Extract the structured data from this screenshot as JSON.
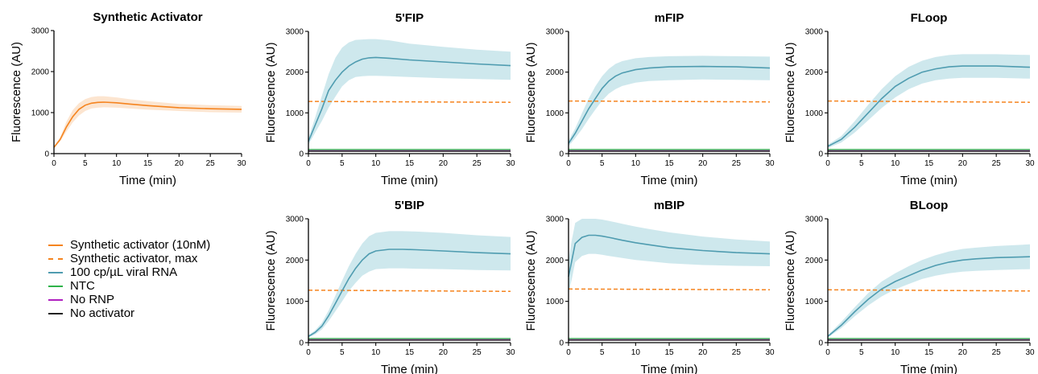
{
  "chart_data": [
    {
      "id": "synthetic-activator",
      "type": "line",
      "title": "Synthetic Activator",
      "xlabel": "Time (min)",
      "ylabel": "Fluorescence (AU)",
      "xlim": [
        0,
        30
      ],
      "ylim": [
        0,
        3000
      ],
      "xticks": [
        "0",
        "5",
        "10",
        "15",
        "20",
        "25",
        "30"
      ],
      "yticks": [
        "0",
        "1000",
        "2000",
        "3000"
      ],
      "series": [
        {
          "name": "Synthetic activator (10nM)",
          "color": "#f5841f",
          "band_color": "#fbe1c8",
          "x": [
            0,
            1,
            2,
            3,
            4,
            5,
            6,
            7,
            8,
            10,
            12,
            15,
            20,
            25,
            30
          ],
          "y": [
            150,
            350,
            650,
            900,
            1080,
            1180,
            1230,
            1250,
            1255,
            1240,
            1210,
            1170,
            1120,
            1095,
            1080
          ],
          "lower": [
            140,
            300,
            540,
            760,
            930,
            1040,
            1100,
            1120,
            1130,
            1120,
            1100,
            1070,
            1040,
            1010,
            1000
          ],
          "upper": [
            170,
            400,
            780,
            1060,
            1230,
            1330,
            1380,
            1400,
            1400,
            1370,
            1330,
            1280,
            1210,
            1180,
            1160
          ]
        }
      ]
    },
    {
      "id": "5fip",
      "type": "line",
      "title": "5'FIP",
      "xlabel": "Time (min)",
      "ylabel": "Fluorescence (AU)",
      "xlim": [
        0,
        30
      ],
      "ylim": [
        0,
        3000
      ],
      "xticks": [
        "0",
        "5",
        "10",
        "15",
        "20",
        "25",
        "30"
      ],
      "yticks": [
        "0",
        "1000",
        "2000",
        "3000"
      ],
      "series": [
        {
          "name": "100 cp/µL viral RNA",
          "color": "#4f9cb0",
          "band_color": "#c5e4ea",
          "x": [
            0,
            1,
            2,
            3,
            4,
            5,
            6,
            7,
            8,
            9,
            10,
            12,
            15,
            20,
            25,
            30
          ],
          "y": [
            300,
            700,
            1100,
            1550,
            1800,
            2000,
            2150,
            2250,
            2320,
            2350,
            2360,
            2340,
            2300,
            2250,
            2200,
            2160
          ],
          "lower": [
            220,
            520,
            800,
            1130,
            1400,
            1650,
            1800,
            1880,
            1900,
            1910,
            1910,
            1900,
            1880,
            1850,
            1830,
            1810
          ],
          "upper": [
            380,
            890,
            1420,
            1950,
            2350,
            2600,
            2730,
            2790,
            2800,
            2810,
            2810,
            2780,
            2700,
            2620,
            2550,
            2500
          ]
        },
        {
          "name": "Synthetic activator, max",
          "color": "#f5841f",
          "dashed": true,
          "x": [
            0,
            30
          ],
          "y": [
            1280,
            1260
          ]
        },
        {
          "name": "NTC",
          "color": "#2fb34a",
          "x": [
            0,
            30
          ],
          "y": [
            100,
            100
          ]
        },
        {
          "name": "No RNP",
          "color": "#b020c0",
          "x": [
            0,
            30
          ],
          "y": [
            70,
            70
          ]
        },
        {
          "name": "No activator",
          "color": "#222222",
          "x": [
            0,
            30
          ],
          "y": [
            60,
            60
          ]
        }
      ]
    },
    {
      "id": "mfip",
      "type": "line",
      "title": "mFIP",
      "xlabel": "Time (min)",
      "ylabel": "Fluorescence (AU)",
      "xlim": [
        0,
        30
      ],
      "ylim": [
        0,
        3000
      ],
      "xticks": [
        "0",
        "5",
        "10",
        "15",
        "20",
        "25",
        "30"
      ],
      "yticks": [
        "0",
        "1000",
        "2000",
        "3000"
      ],
      "series": [
        {
          "name": "100 cp/µL viral RNA",
          "color": "#4f9cb0",
          "band_color": "#c5e4ea",
          "x": [
            0,
            1,
            2,
            3,
            4,
            5,
            6,
            7,
            8,
            10,
            12,
            15,
            20,
            25,
            30
          ],
          "y": [
            250,
            500,
            800,
            1100,
            1350,
            1600,
            1780,
            1900,
            1980,
            2060,
            2100,
            2130,
            2140,
            2130,
            2100
          ],
          "lower": [
            180,
            380,
            600,
            850,
            1080,
            1300,
            1470,
            1580,
            1660,
            1740,
            1780,
            1800,
            1820,
            1810,
            1800
          ],
          "upper": [
            320,
            620,
            990,
            1350,
            1650,
            1900,
            2080,
            2200,
            2270,
            2340,
            2370,
            2390,
            2400,
            2390,
            2380
          ]
        },
        {
          "name": "Synthetic activator, max",
          "color": "#f5841f",
          "dashed": true,
          "x": [
            0,
            30
          ],
          "y": [
            1290,
            1270
          ]
        },
        {
          "name": "NTC",
          "color": "#2fb34a",
          "x": [
            0,
            30
          ],
          "y": [
            100,
            100
          ]
        },
        {
          "name": "No RNP",
          "color": "#b020c0",
          "x": [
            0,
            30
          ],
          "y": [
            70,
            70
          ]
        },
        {
          "name": "No activator",
          "color": "#222222",
          "x": [
            0,
            30
          ],
          "y": [
            60,
            60
          ]
        }
      ]
    },
    {
      "id": "floop",
      "type": "line",
      "title": "FLoop",
      "xlabel": "Time (min)",
      "ylabel": "Fluorescence (AU)",
      "xlim": [
        0,
        30
      ],
      "ylim": [
        0,
        3000
      ],
      "xticks": [
        "0",
        "5",
        "10",
        "15",
        "20",
        "25",
        "30"
      ],
      "yticks": [
        "0",
        "1000",
        "2000",
        "3000"
      ],
      "series": [
        {
          "name": "100 cp/µL viral RNA",
          "color": "#4f9cb0",
          "band_color": "#c5e4ea",
          "x": [
            0,
            2,
            4,
            6,
            8,
            10,
            12,
            14,
            16,
            18,
            20,
            22,
            25,
            30
          ],
          "y": [
            180,
            350,
            650,
            1000,
            1350,
            1650,
            1850,
            2000,
            2080,
            2130,
            2150,
            2150,
            2150,
            2120
          ],
          "lower": [
            140,
            270,
            520,
            820,
            1120,
            1380,
            1580,
            1720,
            1800,
            1840,
            1860,
            1860,
            1860,
            1840
          ],
          "upper": [
            220,
            430,
            800,
            1200,
            1580,
            1900,
            2130,
            2280,
            2370,
            2420,
            2440,
            2440,
            2440,
            2420
          ]
        },
        {
          "name": "Synthetic activator, max",
          "color": "#f5841f",
          "dashed": true,
          "x": [
            0,
            30
          ],
          "y": [
            1290,
            1260
          ]
        },
        {
          "name": "NTC",
          "color": "#2fb34a",
          "x": [
            0,
            30
          ],
          "y": [
            100,
            100
          ]
        },
        {
          "name": "No RNP",
          "color": "#b020c0",
          "x": [
            0,
            30
          ],
          "y": [
            70,
            70
          ]
        },
        {
          "name": "No activator",
          "color": "#222222",
          "x": [
            0,
            30
          ],
          "y": [
            60,
            60
          ]
        }
      ]
    },
    {
      "id": "5bip",
      "type": "line",
      "title": "5'BIP",
      "xlabel": "Time (min)",
      "ylabel": "Fluorescence (AU)",
      "xlim": [
        0,
        30
      ],
      "ylim": [
        0,
        3000
      ],
      "xticks": [
        "0",
        "5",
        "10",
        "15",
        "20",
        "25",
        "30"
      ],
      "yticks": [
        "0",
        "1000",
        "2000",
        "3000"
      ],
      "series": [
        {
          "name": "100 cp/µL viral RNA",
          "color": "#4f9cb0",
          "band_color": "#c5e4ea",
          "x": [
            0,
            1,
            2,
            3,
            4,
            5,
            6,
            7,
            8,
            9,
            10,
            12,
            14,
            16,
            20,
            25,
            30
          ],
          "y": [
            150,
            250,
            400,
            650,
            950,
            1250,
            1550,
            1800,
            2000,
            2150,
            2220,
            2260,
            2260,
            2250,
            2220,
            2180,
            2150
          ],
          "lower": [
            120,
            200,
            320,
            520,
            760,
            1000,
            1250,
            1450,
            1620,
            1720,
            1780,
            1800,
            1800,
            1790,
            1780,
            1760,
            1750
          ],
          "upper": [
            180,
            300,
            480,
            780,
            1140,
            1500,
            1850,
            2150,
            2400,
            2580,
            2660,
            2700,
            2700,
            2690,
            2660,
            2600,
            2560
          ]
        },
        {
          "name": "Synthetic activator, max",
          "color": "#f5841f",
          "dashed": true,
          "x": [
            0,
            30
          ],
          "y": [
            1270,
            1240
          ]
        },
        {
          "name": "NTC",
          "color": "#2fb34a",
          "x": [
            0,
            30
          ],
          "y": [
            100,
            100
          ]
        },
        {
          "name": "No RNP",
          "color": "#b020c0",
          "x": [
            0,
            30
          ],
          "y": [
            70,
            70
          ]
        },
        {
          "name": "No activator",
          "color": "#222222",
          "x": [
            0,
            30
          ],
          "y": [
            60,
            60
          ]
        }
      ]
    },
    {
      "id": "mbip",
      "type": "line",
      "title": "mBIP",
      "xlabel": "Time (min)",
      "ylabel": "Fluorescence (AU)",
      "xlim": [
        0,
        30
      ],
      "ylim": [
        0,
        3000
      ],
      "xticks": [
        "0",
        "5",
        "10",
        "15",
        "20",
        "25",
        "30"
      ],
      "yticks": [
        "0",
        "1000",
        "2000",
        "3000"
      ],
      "series": [
        {
          "name": "100 cp/µL viral RNA",
          "color": "#4f9cb0",
          "band_color": "#c5e4ea",
          "x": [
            0,
            0.5,
            1,
            2,
            3,
            4,
            5,
            6,
            8,
            10,
            12,
            15,
            20,
            25,
            30
          ],
          "y": [
            1600,
            2000,
            2400,
            2550,
            2600,
            2600,
            2580,
            2550,
            2480,
            2420,
            2370,
            2300,
            2230,
            2180,
            2150
          ],
          "lower": [
            1200,
            1550,
            1950,
            2100,
            2150,
            2150,
            2130,
            2100,
            2050,
            2000,
            1970,
            1920,
            1880,
            1860,
            1850
          ],
          "upper": [
            2000,
            2500,
            2900,
            3000,
            3000,
            3000,
            2980,
            2950,
            2880,
            2810,
            2750,
            2670,
            2570,
            2500,
            2450
          ]
        },
        {
          "name": "Synthetic activator, max",
          "color": "#f5841f",
          "dashed": true,
          "x": [
            0,
            30
          ],
          "y": [
            1300,
            1280
          ]
        },
        {
          "name": "NTC",
          "color": "#2fb34a",
          "x": [
            0,
            30
          ],
          "y": [
            100,
            100
          ]
        },
        {
          "name": "No RNP",
          "color": "#b020c0",
          "x": [
            0,
            30
          ],
          "y": [
            70,
            70
          ]
        },
        {
          "name": "No activator",
          "color": "#222222",
          "x": [
            0,
            30
          ],
          "y": [
            60,
            60
          ]
        }
      ]
    },
    {
      "id": "bloop",
      "type": "line",
      "title": "BLoop",
      "xlabel": "Time (min)",
      "ylabel": "Fluorescence (AU)",
      "xlim": [
        0,
        30
      ],
      "ylim": [
        0,
        3000
      ],
      "xticks": [
        "0",
        "5",
        "10",
        "15",
        "20",
        "25",
        "30"
      ],
      "yticks": [
        "0",
        "1000",
        "2000",
        "3000"
      ],
      "series": [
        {
          "name": "100 cp/µL viral RNA",
          "color": "#4f9cb0",
          "band_color": "#c5e4ea",
          "x": [
            0,
            2,
            4,
            6,
            8,
            10,
            12,
            14,
            16,
            18,
            20,
            22,
            25,
            30
          ],
          "y": [
            150,
            420,
            750,
            1050,
            1300,
            1480,
            1620,
            1760,
            1870,
            1950,
            2000,
            2030,
            2060,
            2080
          ],
          "lower": [
            120,
            350,
            640,
            900,
            1120,
            1290,
            1420,
            1540,
            1620,
            1680,
            1720,
            1740,
            1760,
            1780
          ],
          "upper": [
            180,
            500,
            860,
            1200,
            1480,
            1680,
            1850,
            2000,
            2120,
            2210,
            2270,
            2300,
            2340,
            2380
          ]
        },
        {
          "name": "Synthetic activator, max",
          "color": "#f5841f",
          "dashed": true,
          "x": [
            0,
            30
          ],
          "y": [
            1280,
            1250
          ]
        },
        {
          "name": "NTC",
          "color": "#2fb34a",
          "x": [
            0,
            30
          ],
          "y": [
            100,
            100
          ]
        },
        {
          "name": "No RNP",
          "color": "#b020c0",
          "x": [
            0,
            30
          ],
          "y": [
            70,
            70
          ]
        },
        {
          "name": "No activator",
          "color": "#222222",
          "x": [
            0,
            30
          ],
          "y": [
            60,
            60
          ]
        }
      ]
    }
  ],
  "legend": {
    "items": [
      {
        "label": "Synthetic activator (10nM)",
        "color": "#f5841f",
        "dashed": false
      },
      {
        "label": "Synthetic activator, max",
        "color": "#f5841f",
        "dashed": true
      },
      {
        "label": "100 cp/µL viral RNA",
        "color": "#4f9cb0",
        "dashed": false
      },
      {
        "label": "NTC",
        "color": "#2fb34a",
        "dashed": false
      },
      {
        "label": "No RNP",
        "color": "#b020c0",
        "dashed": false
      },
      {
        "label": "No activator",
        "color": "#222222",
        "dashed": false
      }
    ]
  }
}
